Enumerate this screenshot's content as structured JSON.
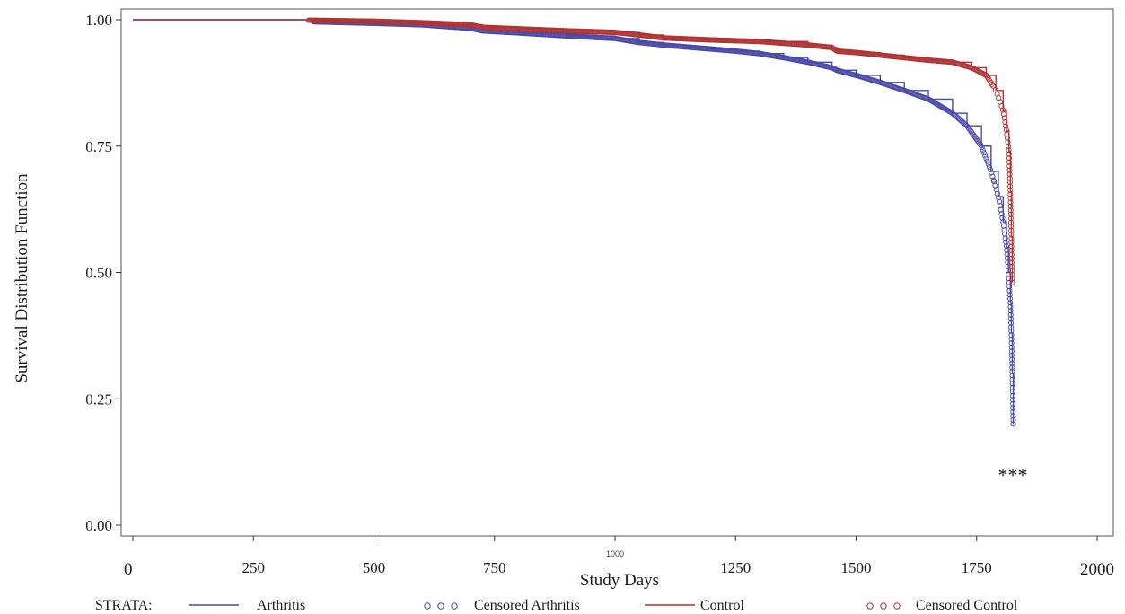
{
  "chart_data": {
    "type": "line",
    "title": "",
    "xlabel": "Study Days",
    "ylabel": "Survival Distribution Function",
    "xlim": [
      0,
      2000
    ],
    "ylim": [
      0,
      1
    ],
    "x_ticks": [
      {
        "value": 0,
        "label": "0"
      },
      {
        "value": 250,
        "label": "250"
      },
      {
        "value": 500,
        "label": "500"
      },
      {
        "value": 750,
        "label": "750"
      },
      {
        "value": 1000,
        "label": "1000"
      },
      {
        "value": 1250,
        "label": "1250"
      },
      {
        "value": 1500,
        "label": "1500"
      },
      {
        "value": 1750,
        "label": "1750"
      },
      {
        "value": 2000,
        "label": "2000"
      }
    ],
    "y_ticks": [
      {
        "value": 0,
        "label": "0.00"
      },
      {
        "value": 0.25,
        "label": "0.25"
      },
      {
        "value": 0.5,
        "label": "0.50"
      },
      {
        "value": 0.75,
        "label": "0.75"
      },
      {
        "value": 1,
        "label": "1.00"
      }
    ],
    "grid": false,
    "legend_placement": "bottom",
    "legend_title": "STRATA:",
    "legend": [
      {
        "label": "Arthritis",
        "kind": "line",
        "color": "#4a4aa8"
      },
      {
        "label": "Censored Arthritis",
        "kind": "markers",
        "color": "#4a4aa8"
      },
      {
        "label": "Control",
        "kind": "line",
        "color": "#b03434"
      },
      {
        "label": "Censored Control",
        "kind": "markers",
        "color": "#b03434"
      }
    ],
    "annotation": {
      "text": "***",
      "x": 1825,
      "y": 0.1
    },
    "series": [
      {
        "name": "Arthritis",
        "color": "#4a4aa8",
        "censored_from": 375,
        "x": [
          0,
          375,
          500,
          600,
          700,
          725,
          800,
          900,
          1000,
          1050,
          1100,
          1150,
          1200,
          1250,
          1300,
          1350,
          1400,
          1450,
          1460,
          1500,
          1550,
          1600,
          1650,
          1700,
          1730,
          1760,
          1780,
          1795,
          1805,
          1812,
          1816,
          1820,
          1822,
          1824,
          1826
        ],
        "y": [
          1.0,
          0.996,
          0.993,
          0.99,
          0.983,
          0.978,
          0.974,
          0.968,
          0.963,
          0.955,
          0.95,
          0.946,
          0.942,
          0.938,
          0.933,
          0.925,
          0.916,
          0.905,
          0.9,
          0.89,
          0.876,
          0.86,
          0.843,
          0.815,
          0.79,
          0.75,
          0.7,
          0.65,
          0.6,
          0.55,
          0.5,
          0.44,
          0.38,
          0.3,
          0.2
        ]
      },
      {
        "name": "Control",
        "color": "#b03434",
        "censored_from": 365,
        "x": [
          0,
          365,
          500,
          600,
          700,
          725,
          800,
          900,
          1000,
          1050,
          1100,
          1150,
          1200,
          1300,
          1400,
          1450,
          1460,
          1500,
          1550,
          1600,
          1650,
          1700,
          1740,
          1770,
          1790,
          1805,
          1812,
          1817,
          1820,
          1822,
          1824
        ],
        "y": [
          1.0,
          0.999,
          0.997,
          0.994,
          0.99,
          0.985,
          0.982,
          0.978,
          0.975,
          0.97,
          0.964,
          0.962,
          0.96,
          0.957,
          0.95,
          0.945,
          0.938,
          0.935,
          0.93,
          0.925,
          0.92,
          0.916,
          0.905,
          0.89,
          0.86,
          0.82,
          0.78,
          0.74,
          0.66,
          0.57,
          0.48
        ]
      }
    ]
  }
}
